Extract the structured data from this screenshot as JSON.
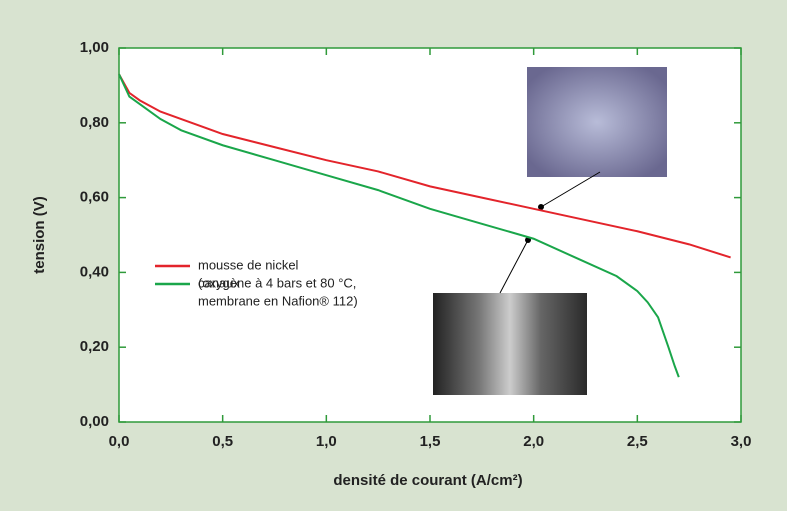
{
  "chart_data": {
    "type": "line",
    "xlabel": "densité de courant (A/cm²)",
    "ylabel": "tension (V)",
    "xlim": [
      0,
      3
    ],
    "ylim": [
      0,
      1
    ],
    "xticks": [
      {
        "value": 0,
        "label": "0,0"
      },
      {
        "value": 0.5,
        "label": "0,5"
      },
      {
        "value": 1,
        "label": "1,0"
      },
      {
        "value": 1.5,
        "label": "1,5"
      },
      {
        "value": 2,
        "label": "2,0"
      },
      {
        "value": 2.5,
        "label": "2,5"
      },
      {
        "value": 3,
        "label": "3,0"
      }
    ],
    "yticks": [
      {
        "value": 0,
        "label": "0,00"
      },
      {
        "value": 0.2,
        "label": "0,20"
      },
      {
        "value": 0.4,
        "label": "0,40"
      },
      {
        "value": 0.6,
        "label": "0,60"
      },
      {
        "value": 0.8,
        "label": "0,80"
      },
      {
        "value": 1,
        "label": "1,00"
      }
    ],
    "series": [
      {
        "name": "mousse de nickel",
        "color": "#e3242b",
        "x": [
          0,
          0.05,
          0.1,
          0.2,
          0.3,
          0.5,
          0.75,
          1.0,
          1.25,
          1.5,
          1.75,
          2.0,
          2.25,
          2.5,
          2.75,
          2.95
        ],
        "values": [
          0.93,
          0.88,
          0.86,
          0.83,
          0.81,
          0.77,
          0.735,
          0.7,
          0.67,
          0.63,
          0.6,
          0.57,
          0.54,
          0.51,
          0.475,
          0.44
        ]
      },
      {
        "name": "canaux",
        "color": "#1aa64a",
        "x": [
          0,
          0.05,
          0.1,
          0.2,
          0.3,
          0.5,
          0.75,
          1.0,
          1.25,
          1.5,
          1.75,
          2.0,
          2.2,
          2.4,
          2.5,
          2.55,
          2.6,
          2.65,
          2.68,
          2.7
        ],
        "values": [
          0.93,
          0.87,
          0.85,
          0.81,
          0.78,
          0.74,
          0.7,
          0.66,
          0.62,
          0.57,
          0.53,
          0.49,
          0.44,
          0.39,
          0.35,
          0.32,
          0.28,
          0.2,
          0.15,
          0.12
        ]
      }
    ],
    "legend_note": [
      "(oxygène à 4 bars et 80 °C,",
      "membrane en Nafion® 112)"
    ]
  }
}
